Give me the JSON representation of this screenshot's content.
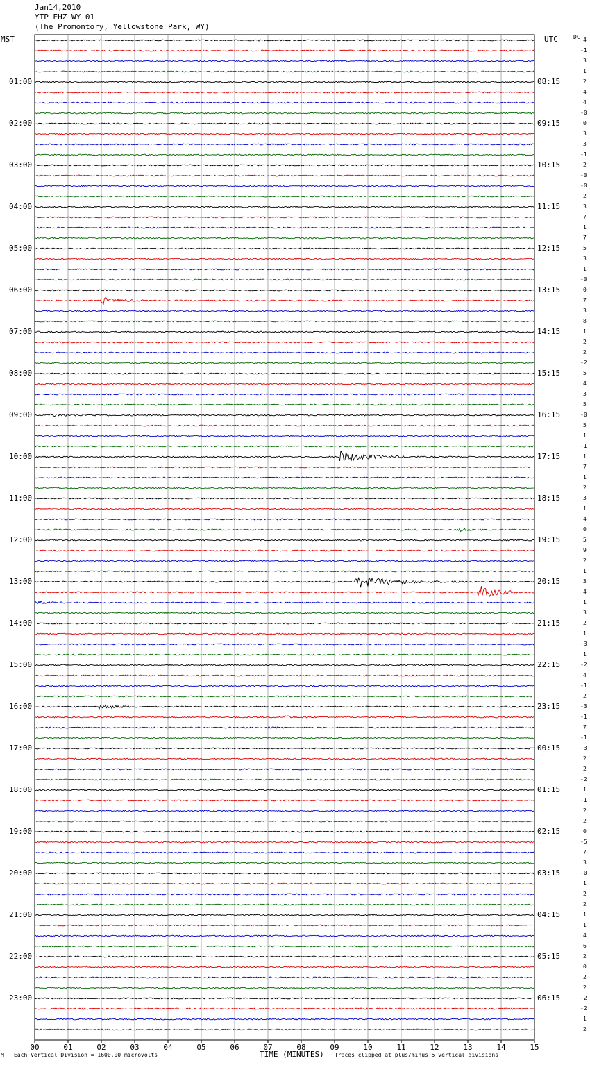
{
  "header": {
    "date": "Jan14,2010",
    "station": "YTP EHZ WY 01",
    "location": "(The Promontory, Yellowstone Park, WY)"
  },
  "left_axis_title": "MST",
  "right_axis_title": "UTC",
  "dc_title": "DC",
  "footer": {
    "scale_note": "Each Vertical Division = 1600.00 microvolts",
    "clip_note": "Traces clipped at plus/minus 5 vertical divisions",
    "mark": "M"
  },
  "chart_data": {
    "type": "line",
    "xlabel": "TIME (MINUTES)",
    "xlim": [
      0,
      15
    ],
    "x_ticks": [
      "00",
      "01",
      "02",
      "03",
      "04",
      "05",
      "06",
      "07",
      "08",
      "09",
      "10",
      "11",
      "12",
      "13",
      "14",
      "15"
    ],
    "trace_colors": [
      "#000000",
      "#dd0000",
      "#0000cc",
      "#006600"
    ],
    "rows_per_hour": 4,
    "left_hour_labels": [
      "01:00",
      "02:00",
      "03:00",
      "04:00",
      "05:00",
      "06:00",
      "07:00",
      "08:00",
      "09:00",
      "10:00",
      "11:00",
      "12:00",
      "13:00",
      "14:00",
      "15:00",
      "16:00",
      "17:00",
      "18:00",
      "19:00",
      "20:00",
      "21:00",
      "22:00",
      "23:00"
    ],
    "right_hour_labels": [
      "08:15",
      "09:15",
      "10:15",
      "11:15",
      "12:15",
      "13:15",
      "14:15",
      "15:15",
      "16:15",
      "17:15",
      "18:15",
      "19:15",
      "20:15",
      "21:15",
      "22:15",
      "23:15",
      "00:15",
      "01:15",
      "02:15",
      "03:15",
      "04:15",
      "05:15",
      "06:15"
    ],
    "dc_offsets": [
      "4",
      "-1",
      "3",
      "1",
      "2",
      "4",
      "4",
      "-0",
      "0",
      "3",
      "3",
      "-1",
      "2",
      "-0",
      "-0",
      "2",
      "3",
      "7",
      "1",
      "7",
      "5",
      "3",
      "1",
      "-0",
      "0",
      "7",
      "3",
      "8",
      "1",
      "2",
      "2",
      "-2",
      "5",
      "4",
      "3",
      "5",
      "-0",
      "5",
      "1",
      "-1",
      "1",
      "7",
      "1",
      "2",
      "3",
      "1",
      "4",
      "0",
      "5",
      "9",
      "2",
      "1",
      "3",
      "4",
      "1",
      "3",
      "2",
      "1",
      "-3",
      "1",
      "-2",
      "4",
      "-1",
      "2",
      "-3",
      "-1",
      "7",
      "-1",
      "-3",
      "2",
      "2",
      "-2",
      "1",
      "-1",
      "2",
      "2",
      "0",
      "-5",
      "7",
      "3",
      "-0",
      "1",
      "2",
      "2",
      "1",
      "1",
      "4",
      "6",
      "2",
      "0",
      "2",
      "2",
      "-2",
      "-2",
      "1",
      "2"
    ],
    "events": [
      {
        "row": 25,
        "start_min": 2.0,
        "end_min": 3.3,
        "amp": 2.5
      },
      {
        "row": 36,
        "start_min": 0.4,
        "end_min": 3.0,
        "amp": 0.8
      },
      {
        "row": 40,
        "start_min": 9.1,
        "end_min": 11.5,
        "amp": 4.5
      },
      {
        "row": 47,
        "start_min": 12.7,
        "end_min": 13.6,
        "amp": 1.2
      },
      {
        "row": 52,
        "start_min": 9.6,
        "end_min": 13.0,
        "amp": 4.0
      },
      {
        "row": 53,
        "start_min": 13.3,
        "end_min": 15.0,
        "amp": 5.0
      },
      {
        "row": 54,
        "start_min": 0.0,
        "end_min": 1.0,
        "amp": 1.2
      },
      {
        "row": 55,
        "start_min": 4.7,
        "end_min": 5.0,
        "amp": 1.0
      },
      {
        "row": 64,
        "start_min": 1.9,
        "end_min": 3.3,
        "amp": 2.0
      },
      {
        "row": 65,
        "start_min": 7.5,
        "end_min": 8.5,
        "amp": 0.8
      },
      {
        "row": 66,
        "start_min": 7.0,
        "end_min": 7.6,
        "amp": 0.8
      }
    ]
  }
}
